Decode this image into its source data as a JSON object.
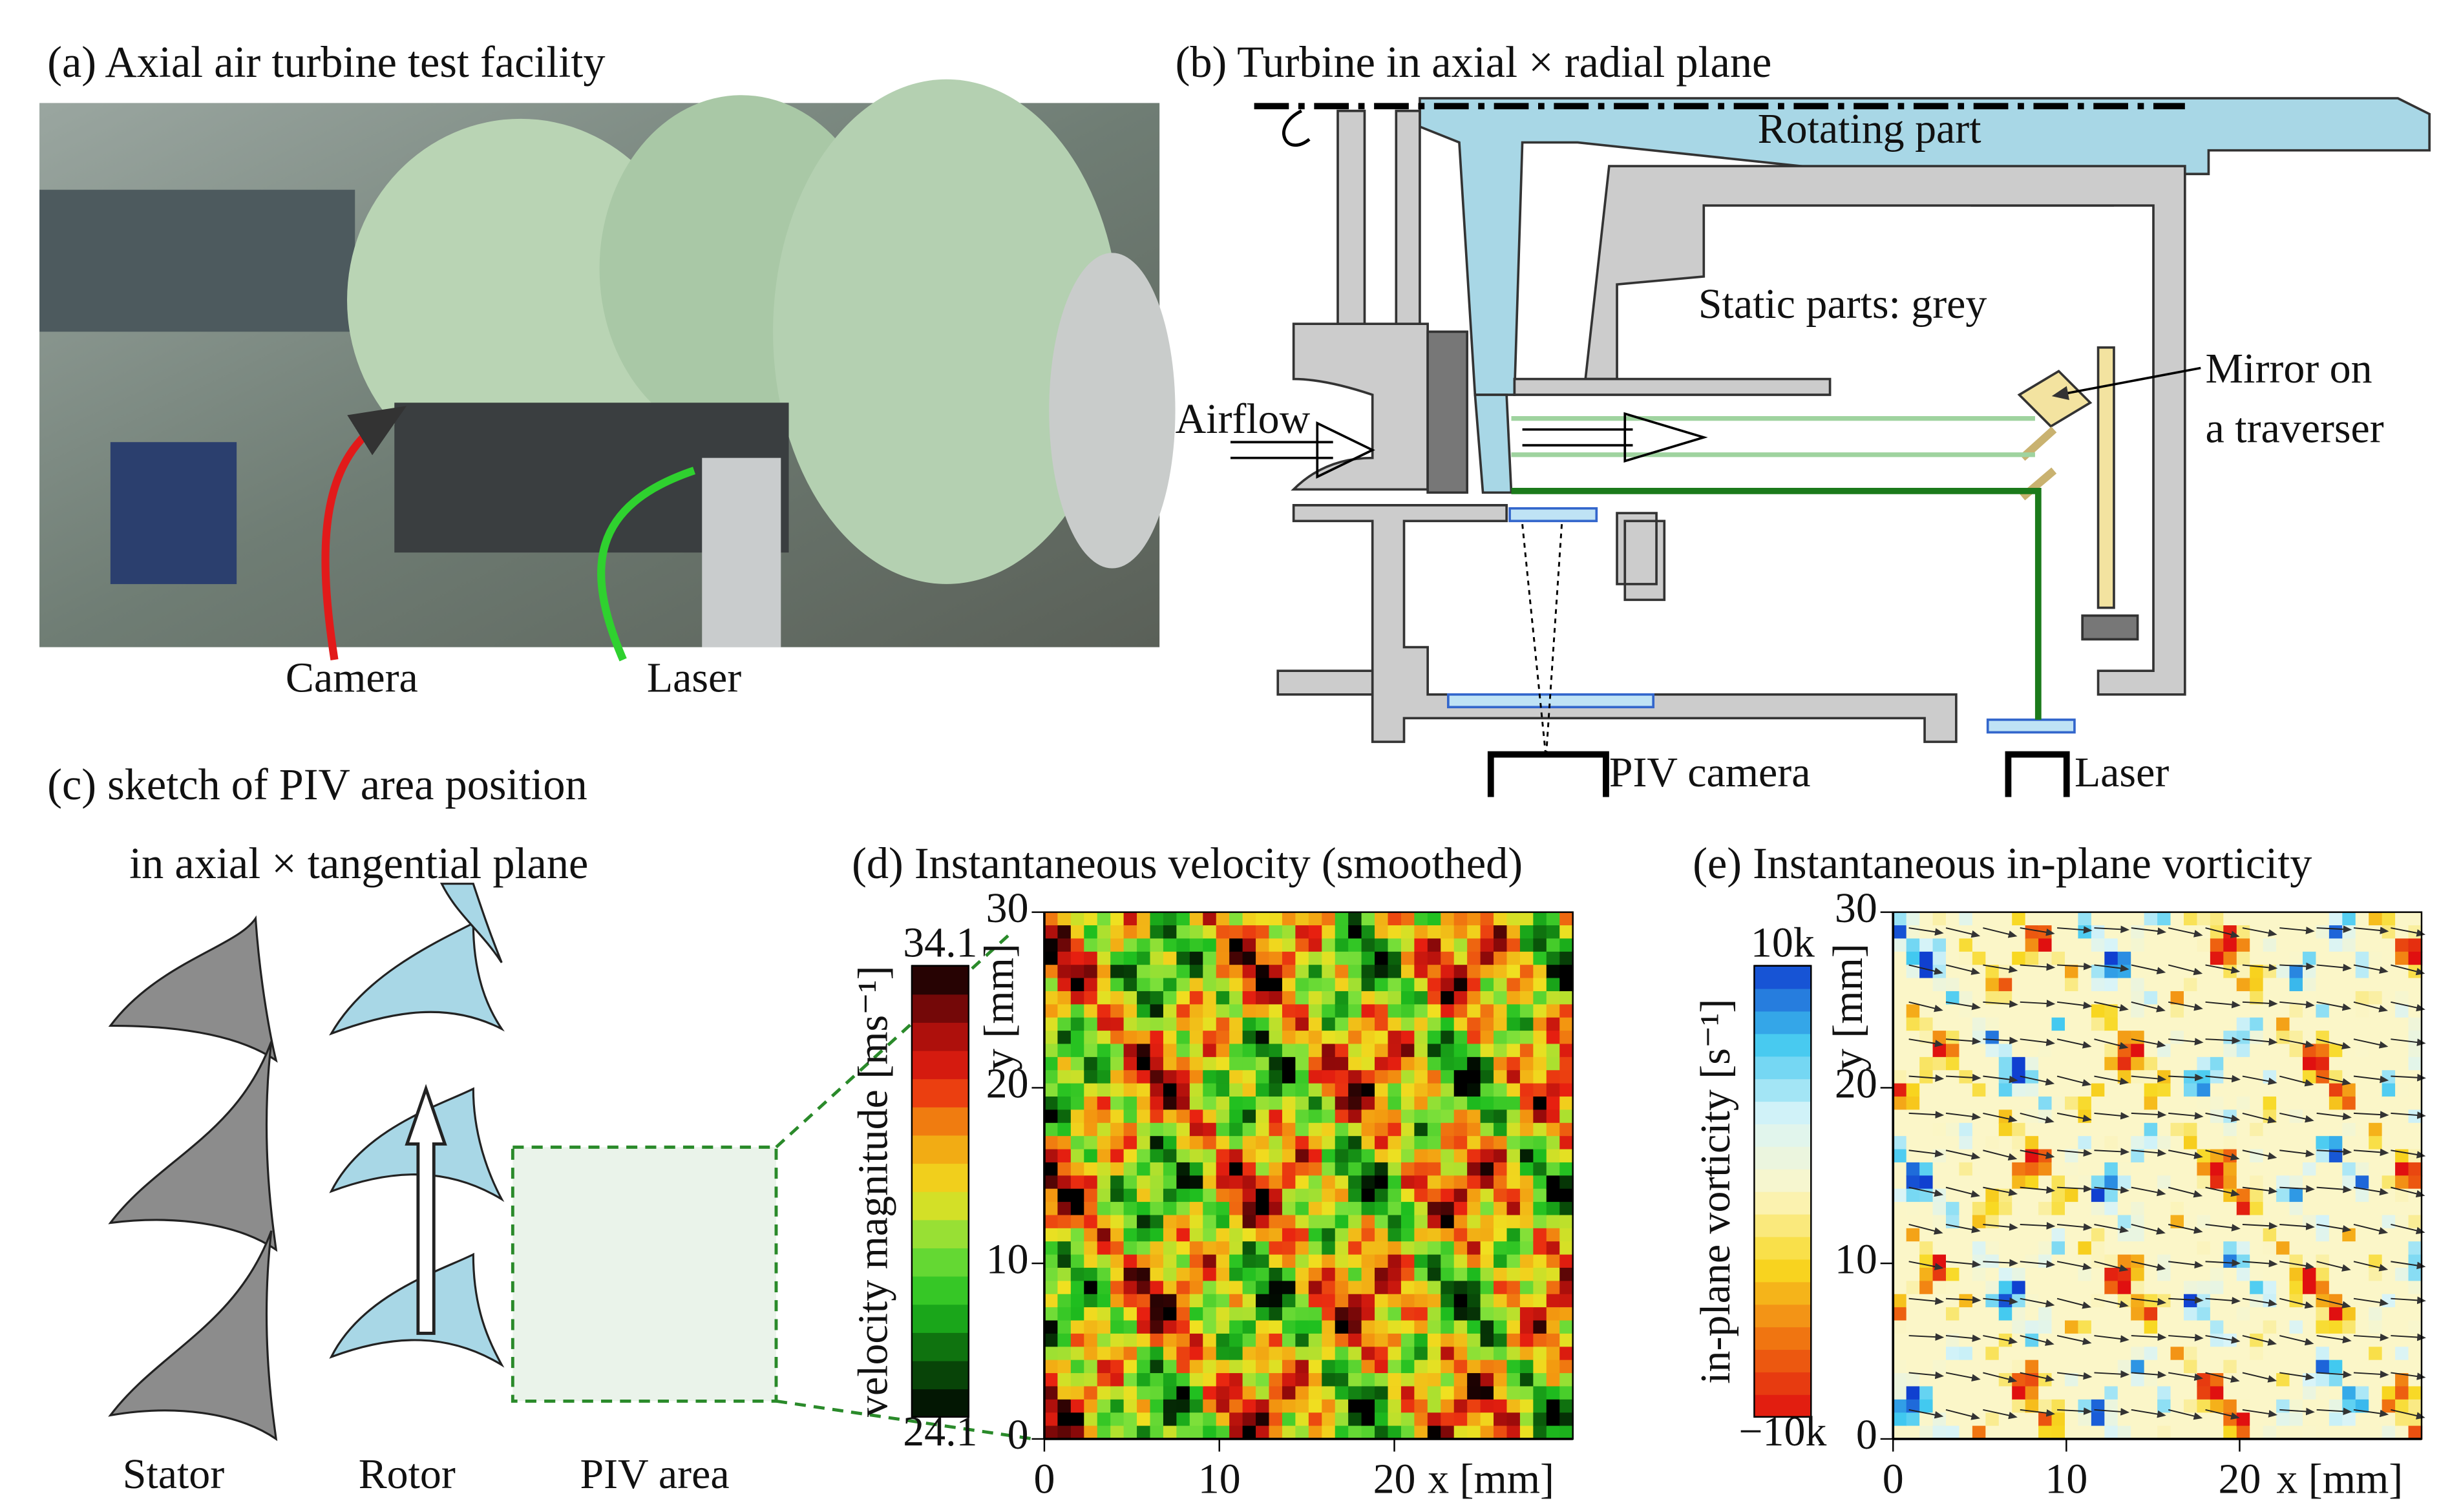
{
  "panel_a": {
    "title": "(a) Axial air turbine test facility",
    "camera_label": "Camera",
    "laser_label": "Laser"
  },
  "panel_b": {
    "title": "(b) Turbine in axial × radial plane",
    "rotating": "Rotating part",
    "static": "Static parts: grey",
    "airflow": "Airflow",
    "mirror": [
      "Mirror on",
      "a traverser"
    ],
    "piv_camera": "PIV camera",
    "laser": "Laser"
  },
  "panel_c": {
    "title": [
      "(c) sketch of PIV area position",
      "in axial × tangential plane"
    ],
    "labels": [
      "Stator",
      "Rotor",
      "PIV area"
    ]
  },
  "panel_d": {
    "title": "(d) Instantaneous velocity (smoothed)",
    "colorbar_label": "velocity magnitude [ms⁻¹]",
    "clim": [
      24.1,
      34.1
    ],
    "cticks": [
      24.1,
      34.1
    ],
    "xlabel": "x [mm]",
    "ylabel": "y [mm]",
    "xlim": [
      0,
      30.2
    ],
    "ylim": [
      0,
      30
    ],
    "xticks": [
      0,
      10,
      20
    ],
    "yticks": [
      0,
      10,
      20,
      30
    ]
  },
  "panel_e": {
    "title": "(e) Instantaneous in-plane vorticity",
    "colorbar_label": "in-plane vorticity [s⁻¹]",
    "clim": [
      -10000,
      10000
    ],
    "cticks": [
      {
        "value": -10000,
        "label": "−10k"
      },
      {
        "value": 10000,
        "label": "10k"
      }
    ],
    "xlabel": "x [mm]",
    "ylabel": "y [mm]",
    "xlim": [
      0,
      30.5
    ],
    "ylim": [
      0,
      30
    ],
    "xticks": [
      0,
      10,
      20
    ],
    "yticks": [
      0,
      10,
      20,
      30
    ]
  }
}
